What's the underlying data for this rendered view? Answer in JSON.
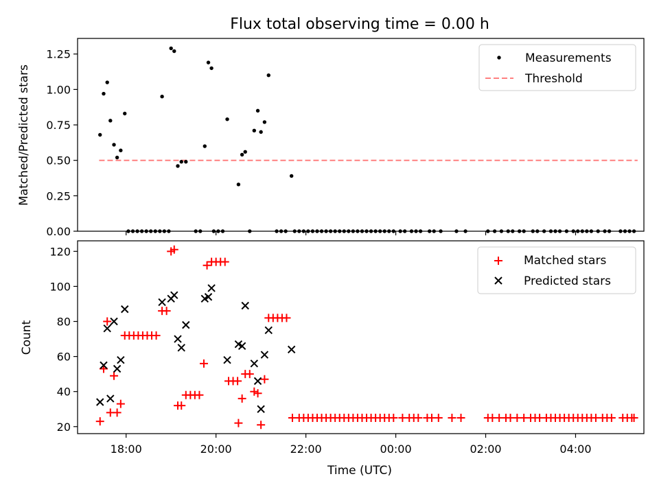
{
  "chart_data": [
    {
      "type": "scatter",
      "title": "Flux total observing time = 0.00 h",
      "xlabel": "",
      "ylabel": "Matched/Predicted stars",
      "xlim": [
        16.92,
        29.52
      ],
      "ylim": [
        0.0,
        1.36
      ],
      "yticks": [
        0.0,
        0.25,
        0.5,
        0.75,
        1.0,
        1.25
      ],
      "ytick_labels": [
        "0.00",
        "0.25",
        "0.50",
        "0.75",
        "1.00",
        "1.25"
      ],
      "xticks": [
        18,
        20,
        22,
        24,
        26,
        28
      ],
      "legend": {
        "position": "top-right",
        "entries": [
          "Measurements",
          "Threshold"
        ]
      },
      "threshold": {
        "name": "Threshold",
        "y": 0.5,
        "x_start": 17.4,
        "x_end": 29.38,
        "color": "#ff7f7f"
      },
      "series": [
        {
          "name": "Measurements",
          "color": "#000000",
          "points": [
            [
              17.42,
              0.68
            ],
            [
              17.5,
              0.97
            ],
            [
              17.58,
              1.05
            ],
            [
              17.65,
              0.78
            ],
            [
              17.73,
              0.61
            ],
            [
              17.8,
              0.52
            ],
            [
              17.88,
              0.57
            ],
            [
              17.97,
              0.83
            ],
            [
              18.8,
              0.95
            ],
            [
              19.0,
              1.29
            ],
            [
              19.07,
              1.27
            ],
            [
              19.15,
              0.46
            ],
            [
              19.23,
              0.49
            ],
            [
              19.33,
              0.49
            ],
            [
              19.75,
              0.6
            ],
            [
              19.83,
              1.19
            ],
            [
              19.9,
              1.15
            ],
            [
              20.25,
              0.79
            ],
            [
              20.5,
              0.33
            ],
            [
              20.58,
              0.54
            ],
            [
              20.65,
              0.56
            ],
            [
              20.85,
              0.71
            ],
            [
              20.93,
              0.85
            ],
            [
              21.0,
              0.7
            ],
            [
              21.08,
              0.77
            ],
            [
              21.17,
              1.1
            ],
            [
              21.68,
              0.39
            ],
            [
              18.05,
              0
            ],
            [
              18.15,
              0
            ],
            [
              18.25,
              0
            ],
            [
              18.35,
              0
            ],
            [
              18.45,
              0
            ],
            [
              18.55,
              0
            ],
            [
              18.65,
              0
            ],
            [
              18.75,
              0
            ],
            [
              18.85,
              0
            ],
            [
              18.95,
              0
            ],
            [
              19.55,
              0
            ],
            [
              19.65,
              0
            ],
            [
              19.95,
              0
            ],
            [
              20.05,
              0
            ],
            [
              20.15,
              0
            ],
            [
              20.75,
              0
            ],
            [
              21.35,
              0
            ],
            [
              21.45,
              0
            ],
            [
              21.55,
              0
            ],
            [
              21.75,
              0
            ],
            [
              21.85,
              0
            ],
            [
              21.95,
              0
            ],
            [
              22.05,
              0
            ],
            [
              22.15,
              0
            ],
            [
              22.25,
              0
            ],
            [
              22.35,
              0
            ],
            [
              22.45,
              0
            ],
            [
              22.55,
              0
            ],
            [
              22.65,
              0
            ],
            [
              22.75,
              0
            ],
            [
              22.85,
              0
            ],
            [
              22.95,
              0
            ],
            [
              23.05,
              0
            ],
            [
              23.15,
              0
            ],
            [
              23.25,
              0
            ],
            [
              23.35,
              0
            ],
            [
              23.45,
              0
            ],
            [
              23.55,
              0
            ],
            [
              23.65,
              0
            ],
            [
              23.75,
              0
            ],
            [
              23.85,
              0
            ],
            [
              23.95,
              0
            ],
            [
              24.1,
              0
            ],
            [
              24.2,
              0
            ],
            [
              24.35,
              0
            ],
            [
              24.45,
              0
            ],
            [
              24.55,
              0
            ],
            [
              24.75,
              0
            ],
            [
              24.85,
              0
            ],
            [
              25.0,
              0
            ],
            [
              25.35,
              0
            ],
            [
              25.55,
              0
            ],
            [
              26.05,
              0
            ],
            [
              26.2,
              0
            ],
            [
              26.35,
              0
            ],
            [
              26.5,
              0
            ],
            [
              26.6,
              0
            ],
            [
              26.75,
              0
            ],
            [
              26.85,
              0
            ],
            [
              27.05,
              0
            ],
            [
              27.15,
              0
            ],
            [
              27.3,
              0
            ],
            [
              27.45,
              0
            ],
            [
              27.55,
              0
            ],
            [
              27.65,
              0
            ],
            [
              27.8,
              0
            ],
            [
              27.95,
              0
            ],
            [
              28.05,
              0
            ],
            [
              28.15,
              0
            ],
            [
              28.25,
              0
            ],
            [
              28.35,
              0
            ],
            [
              28.5,
              0
            ],
            [
              28.65,
              0
            ],
            [
              28.75,
              0
            ],
            [
              29.0,
              0
            ],
            [
              29.1,
              0
            ],
            [
              29.2,
              0
            ],
            [
              29.3,
              0
            ]
          ]
        }
      ]
    },
    {
      "type": "scatter",
      "title": "",
      "xlabel": "Time (UTC)",
      "ylabel": "Count",
      "xlim": [
        16.92,
        29.52
      ],
      "ylim": [
        16,
        126
      ],
      "yticks": [
        20,
        40,
        60,
        80,
        100,
        120
      ],
      "ytick_labels": [
        "20",
        "40",
        "60",
        "80",
        "100",
        "120"
      ],
      "xticks": [
        18,
        20,
        22,
        24,
        26,
        28
      ],
      "xtick_labels": [
        "18:00",
        "20:00",
        "22:00",
        "00:00",
        "02:00",
        "04:00"
      ],
      "legend": {
        "position": "top-right",
        "entries": [
          "Matched stars",
          "Predicted stars"
        ]
      },
      "series": [
        {
          "name": "Matched stars",
          "marker": "plus",
          "color": "#ff0000",
          "points": [
            [
              17.42,
              23
            ],
            [
              17.5,
              53
            ],
            [
              17.58,
              80
            ],
            [
              17.65,
              28
            ],
            [
              17.73,
              49
            ],
            [
              17.8,
              28
            ],
            [
              17.88,
              33
            ],
            [
              17.97,
              72
            ],
            [
              18.07,
              72
            ],
            [
              18.17,
              72
            ],
            [
              18.27,
              72
            ],
            [
              18.37,
              72
            ],
            [
              18.47,
              72
            ],
            [
              18.57,
              72
            ],
            [
              18.67,
              72
            ],
            [
              18.8,
              86
            ],
            [
              18.9,
              86
            ],
            [
              19.0,
              120
            ],
            [
              19.07,
              121
            ],
            [
              19.15,
              32
            ],
            [
              19.23,
              32
            ],
            [
              19.33,
              38
            ],
            [
              19.43,
              38
            ],
            [
              19.53,
              38
            ],
            [
              19.63,
              38
            ],
            [
              19.73,
              56
            ],
            [
              19.8,
              112
            ],
            [
              19.9,
              114
            ],
            [
              20.0,
              114
            ],
            [
              20.1,
              114
            ],
            [
              20.2,
              114
            ],
            [
              20.28,
              46
            ],
            [
              20.38,
              46
            ],
            [
              20.48,
              46
            ],
            [
              20.5,
              22
            ],
            [
              20.58,
              36
            ],
            [
              20.65,
              50
            ],
            [
              20.75,
              50
            ],
            [
              20.85,
              40
            ],
            [
              20.93,
              39
            ],
            [
              21.0,
              21
            ],
            [
              21.08,
              47
            ],
            [
              21.17,
              82
            ],
            [
              21.27,
              82
            ],
            [
              21.37,
              82
            ],
            [
              21.47,
              82
            ],
            [
              21.57,
              82
            ],
            [
              21.7,
              25
            ],
            [
              21.85,
              25
            ],
            [
              21.95,
              25
            ],
            [
              22.05,
              25
            ],
            [
              22.15,
              25
            ],
            [
              22.25,
              25
            ],
            [
              22.35,
              25
            ],
            [
              22.45,
              25
            ],
            [
              22.55,
              25
            ],
            [
              22.65,
              25
            ],
            [
              22.75,
              25
            ],
            [
              22.85,
              25
            ],
            [
              22.95,
              25
            ],
            [
              23.05,
              25
            ],
            [
              23.15,
              25
            ],
            [
              23.25,
              25
            ],
            [
              23.35,
              25
            ],
            [
              23.45,
              25
            ],
            [
              23.55,
              25
            ],
            [
              23.65,
              25
            ],
            [
              23.75,
              25
            ],
            [
              23.85,
              25
            ],
            [
              23.95,
              25
            ],
            [
              24.15,
              25
            ],
            [
              24.3,
              25
            ],
            [
              24.4,
              25
            ],
            [
              24.5,
              25
            ],
            [
              24.7,
              25
            ],
            [
              24.8,
              25
            ],
            [
              24.95,
              25
            ],
            [
              25.25,
              25
            ],
            [
              25.45,
              25
            ],
            [
              26.05,
              25
            ],
            [
              26.15,
              25
            ],
            [
              26.3,
              25
            ],
            [
              26.45,
              25
            ],
            [
              26.55,
              25
            ],
            [
              26.7,
              25
            ],
            [
              26.85,
              25
            ],
            [
              27.0,
              25
            ],
            [
              27.1,
              25
            ],
            [
              27.2,
              25
            ],
            [
              27.35,
              25
            ],
            [
              27.45,
              25
            ],
            [
              27.55,
              25
            ],
            [
              27.65,
              25
            ],
            [
              27.75,
              25
            ],
            [
              27.85,
              25
            ],
            [
              27.95,
              25
            ],
            [
              28.05,
              25
            ],
            [
              28.15,
              25
            ],
            [
              28.25,
              25
            ],
            [
              28.35,
              25
            ],
            [
              28.45,
              25
            ],
            [
              28.6,
              25
            ],
            [
              28.7,
              25
            ],
            [
              28.8,
              25
            ],
            [
              29.05,
              25
            ],
            [
              29.15,
              25
            ],
            [
              29.25,
              25
            ],
            [
              29.3,
              25
            ]
          ]
        },
        {
          "name": "Predicted stars",
          "marker": "x",
          "color": "#000000",
          "points": [
            [
              17.42,
              34
            ],
            [
              17.5,
              55
            ],
            [
              17.58,
              76
            ],
            [
              17.65,
              36
            ],
            [
              17.73,
              80
            ],
            [
              17.8,
              53
            ],
            [
              17.88,
              58
            ],
            [
              17.97,
              87
            ],
            [
              18.8,
              91
            ],
            [
              19.0,
              93
            ],
            [
              19.07,
              95
            ],
            [
              19.15,
              70
            ],
            [
              19.23,
              65
            ],
            [
              19.33,
              78
            ],
            [
              19.75,
              93
            ],
            [
              19.83,
              94
            ],
            [
              19.9,
              99
            ],
            [
              20.25,
              58
            ],
            [
              20.5,
              67
            ],
            [
              20.58,
              66
            ],
            [
              20.65,
              89
            ],
            [
              20.85,
              56
            ],
            [
              20.93,
              46
            ],
            [
              21.0,
              30
            ],
            [
              21.08,
              61
            ],
            [
              21.17,
              75
            ],
            [
              21.68,
              64
            ]
          ]
        }
      ]
    }
  ]
}
